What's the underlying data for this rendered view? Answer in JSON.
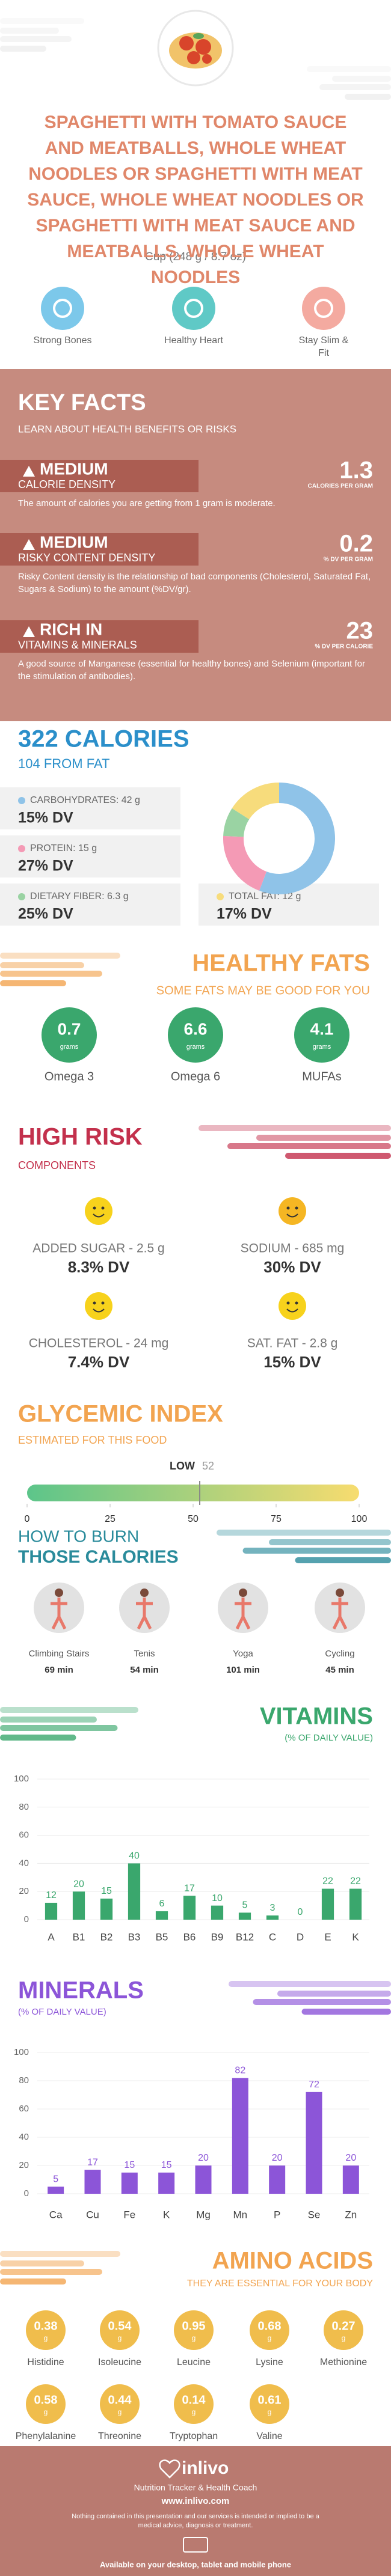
{
  "header": {
    "title": "SPAGHETTI WITH TOMATO SAUCE AND MEATBALLS, WHOLE WHEAT NOODLES OR SPAGHETTI WITH MEAT SAUCE, WHOLE WHEAT NOODLES OR SPAGHETTI WITH MEAT SAUCE AND MEATBALLS, WHOLE WHEAT NOODLES",
    "serving": "Cup (248 g / 8.7 oz)"
  },
  "benefits": [
    "Strong Bones",
    "Healthy Heart",
    "Stay Slim & Fit"
  ],
  "key_facts": {
    "title": "KEY FACTS",
    "subtitle": "LEARN ABOUT HEALTH BENEFITS OR RISKS",
    "facts": [
      {
        "level": "MEDIUM",
        "name": "CALORIE DENSITY",
        "value": 1.3,
        "unit": "CALORIES PER GRAM",
        "text": "The amount of calories you are getting from 1 gram is moderate."
      },
      {
        "level": "MEDIUM",
        "name": "RISKY CONTENT DENSITY",
        "value": 0.2,
        "unit": "% DV PER GRAM",
        "text": "Risky Content density is the relationship of bad components (Cholesterol, Saturated Fat, Sugars & Sodium) to the amount (%DV/gr)."
      },
      {
        "level": "RICH IN",
        "name": "VITAMINS & MINERALS",
        "value": 23,
        "unit": "% DV PER CALORIE",
        "text": "A good source of Manganese (essential for healthy bones) and Selenium (important for the stimulation of antibodies)."
      }
    ]
  },
  "calories": {
    "title": "322 CALORIES",
    "subtitle": "104 FROM FAT",
    "nutrients": [
      {
        "label": "CARBOHYDRATES: 42 g",
        "dv": "15% DV",
        "grams": 42,
        "color": "#8fc3e8"
      },
      {
        "label": "PROTEIN: 15 g",
        "dv": "27% DV",
        "grams": 15,
        "color": "#f49ab5"
      },
      {
        "label": "DIETARY FIBER: 6.3 g",
        "dv": "25% DV",
        "grams": 6.3,
        "color": "#9ad3a3"
      },
      {
        "label": "TOTAL FAT: 12 g",
        "dv": "17% DV",
        "grams": 12,
        "color": "#f7dc7c"
      }
    ]
  },
  "healthy_fats": {
    "title": "HEALTHY FATS",
    "subtitle": "SOME FATS MAY BE GOOD FOR YOU",
    "unit": "grams",
    "items": [
      {
        "name": "Omega 3",
        "value": 0.7
      },
      {
        "name": "Omega 6",
        "value": 6.6
      },
      {
        "name": "MUFAs",
        "value": 4.1
      }
    ]
  },
  "high_risk": {
    "title": "HIGH RISK",
    "subtitle": "COMPONENTS",
    "items": [
      {
        "name": "ADDED SUGAR - 2.5 g",
        "dv": "8.3% DV"
      },
      {
        "name": "SODIUM - 685 mg",
        "dv": "30% DV"
      },
      {
        "name": "CHOLESTEROL - 24 mg",
        "dv": "7.4% DV"
      },
      {
        "name": "SAT. FAT - 2.8 g",
        "dv": "15% DV"
      }
    ]
  },
  "glycemic_index": {
    "title": "GLYCEMIC INDEX",
    "subtitle": "ESTIMATED FOR THIS FOOD",
    "level": "LOW",
    "value": 52,
    "xlim": [
      0,
      100
    ],
    "xticks": [
      0,
      25,
      50,
      75,
      100
    ]
  },
  "burn": {
    "title_1": "HOW TO BURN",
    "title_2": "THOSE CALORIES",
    "activities": [
      {
        "name": "Climbing Stairs",
        "time": "69 min"
      },
      {
        "name": "Tenis",
        "time": "54 min"
      },
      {
        "name": "Yoga",
        "time": "101 min"
      },
      {
        "name": "Cycling",
        "time": "45 min"
      }
    ]
  },
  "vitamins": {
    "type": "bar",
    "title": "VITAMINS",
    "subtitle": "(% OF DAILY VALUE)",
    "color": "#3aa76d",
    "categories": [
      "A",
      "B1",
      "B2",
      "B3",
      "B5",
      "B6",
      "B9",
      "B12",
      "C",
      "D",
      "E",
      "K"
    ],
    "values": [
      12,
      20,
      15,
      40,
      6,
      17,
      10,
      5,
      3,
      0,
      22,
      22
    ],
    "ylim": [
      0,
      100
    ],
    "yticks": [
      0,
      20,
      40,
      60,
      80,
      100
    ]
  },
  "minerals": {
    "type": "bar",
    "title": "MINERALS",
    "subtitle": "(% OF DAILY VALUE)",
    "color": "#8c55d8",
    "categories": [
      "Ca",
      "Cu",
      "Fe",
      "K",
      "Mg",
      "Mn",
      "P",
      "Se",
      "Zn"
    ],
    "values": [
      5,
      17,
      15,
      15,
      20,
      82,
      20,
      72,
      20
    ],
    "ylim": [
      0,
      100
    ],
    "yticks": [
      0,
      20,
      40,
      60,
      80,
      100
    ]
  },
  "amino_acids": {
    "title": "AMINO ACIDS",
    "subtitle": "THEY ARE ESSENTIAL FOR YOUR BODY",
    "unit": "g",
    "items": [
      {
        "name": "Histidine",
        "value": 0.38
      },
      {
        "name": "Isoleucine",
        "value": 0.54
      },
      {
        "name": "Leucine",
        "value": 0.95
      },
      {
        "name": "Lysine",
        "value": 0.68
      },
      {
        "name": "Methionine",
        "value": 0.27
      },
      {
        "name": "Phenylalanine",
        "value": 0.58
      },
      {
        "name": "Threonine",
        "value": 0.44
      },
      {
        "name": "Tryptophan",
        "value": 0.14
      },
      {
        "name": "Valine",
        "value": 0.61
      }
    ]
  },
  "footer": {
    "brand": "inlivo",
    "tagline": "Nutrition Tracker & Health Coach",
    "url": "www.inlivo.com",
    "disclaimer": "Nothing contained in this presentation and our services is intended or implied to be a medical advice, diagnosis or treatment.",
    "availability": "Available on your desktop, tablet and mobile phone"
  }
}
